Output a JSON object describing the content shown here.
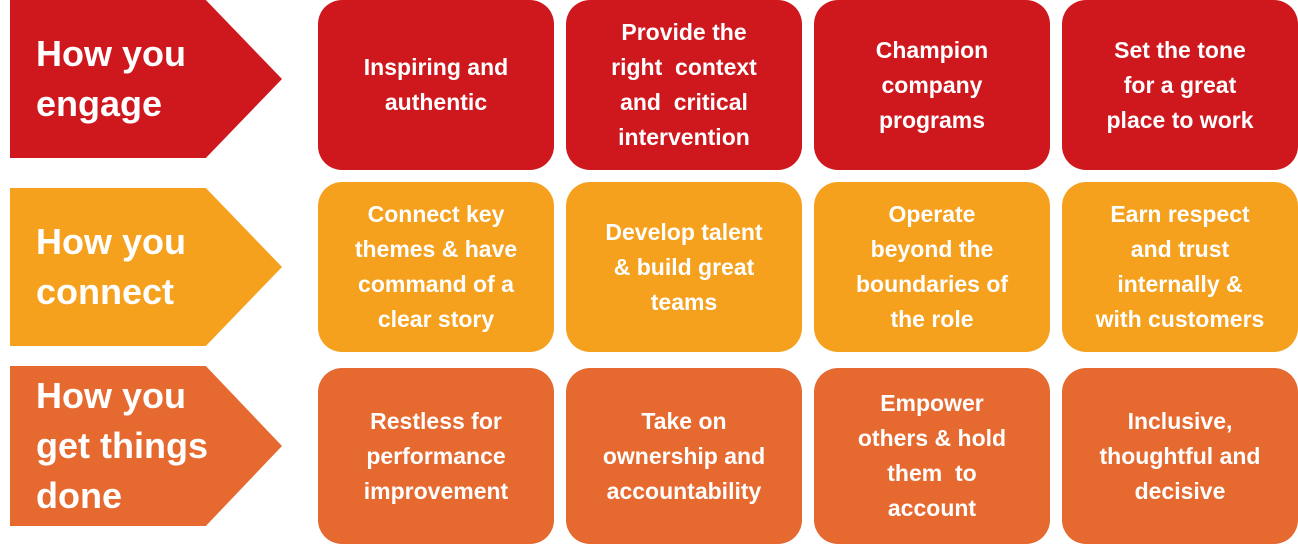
{
  "colors": {
    "engage": "#cf171e",
    "connect": "#f5a11e",
    "done": "#e66a30"
  },
  "rows": [
    {
      "key": "engage",
      "label_lines": [
        "How you",
        "engage"
      ],
      "boxes": [
        {
          "lines": [
            "Inspiring and",
            "authentic"
          ]
        },
        {
          "lines": [
            "Provide the",
            "right  context",
            "and  critical",
            "intervention"
          ]
        },
        {
          "lines": [
            "Champion",
            "company",
            "programs"
          ]
        },
        {
          "lines": [
            "Set the tone",
            "for a great",
            "place to work"
          ]
        }
      ]
    },
    {
      "key": "connect",
      "label_lines": [
        "How you",
        "connect"
      ],
      "boxes": [
        {
          "lines": [
            "Connect key",
            "themes & have",
            "command of a",
            "clear story"
          ]
        },
        {
          "lines": [
            "Develop talent",
            "& build great",
            "teams"
          ]
        },
        {
          "lines": [
            "Operate",
            "beyond the",
            "boundaries of",
            "the role"
          ]
        },
        {
          "lines": [
            "Earn respect",
            "and trust",
            "internally &",
            "with customers"
          ]
        }
      ]
    },
    {
      "key": "done",
      "label_lines": [
        "How you",
        "get things",
        "done"
      ],
      "boxes": [
        {
          "lines": [
            "Restless for",
            "performance",
            "improvement"
          ]
        },
        {
          "lines": [
            "Take on",
            "ownership and",
            "accountability"
          ]
        },
        {
          "lines": [
            "Empower",
            "others & hold",
            "them  to",
            "account"
          ]
        },
        {
          "lines": [
            "Inclusive,",
            "thoughtful and",
            "decisive"
          ]
        }
      ]
    }
  ]
}
